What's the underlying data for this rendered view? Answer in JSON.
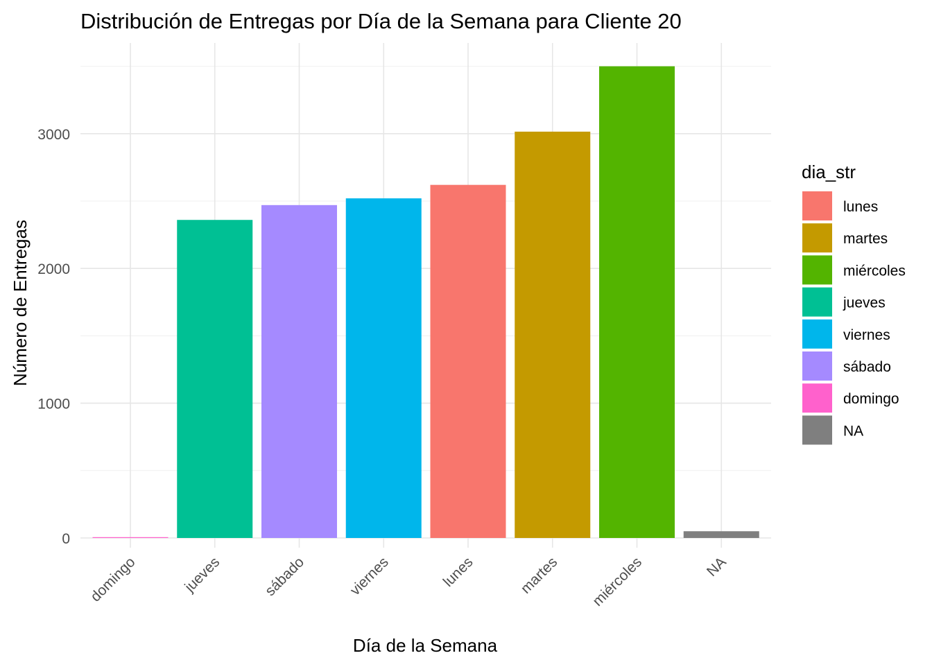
{
  "chart_data": {
    "type": "bar",
    "title": "Distribución de Entregas por Día de la Semana para Cliente 20",
    "xlabel": "Día de la Semana",
    "ylabel": "Número de Entregas",
    "categories": [
      "domingo",
      "jueves",
      "sábado",
      "viernes",
      "lunes",
      "martes",
      "miércoles",
      "NA"
    ],
    "values": [
      5,
      2360,
      2470,
      2520,
      2620,
      3015,
      3500,
      50
    ],
    "bar_colors": [
      "#FF61CC",
      "#00C094",
      "#A58AFF",
      "#00B6EB",
      "#F8766D",
      "#C49A00",
      "#53B400",
      "#7F7F7F"
    ],
    "ylim": [
      0,
      3500
    ],
    "yticks": [
      0,
      1000,
      2000,
      3000
    ],
    "ytick_labels": [
      "0",
      "1000",
      "2000",
      "3000"
    ],
    "grid": true,
    "legend": {
      "title": "dia_str",
      "position": "right",
      "entries": [
        {
          "label": "lunes",
          "color": "#F8766D"
        },
        {
          "label": "martes",
          "color": "#C49A00"
        },
        {
          "label": "miércoles",
          "color": "#53B400"
        },
        {
          "label": "jueves",
          "color": "#00C094"
        },
        {
          "label": "viernes",
          "color": "#00B6EB"
        },
        {
          "label": "sábado",
          "color": "#A58AFF"
        },
        {
          "label": "domingo",
          "color": "#FF61CC"
        },
        {
          "label": "NA",
          "color": "#7F7F7F"
        }
      ]
    }
  }
}
